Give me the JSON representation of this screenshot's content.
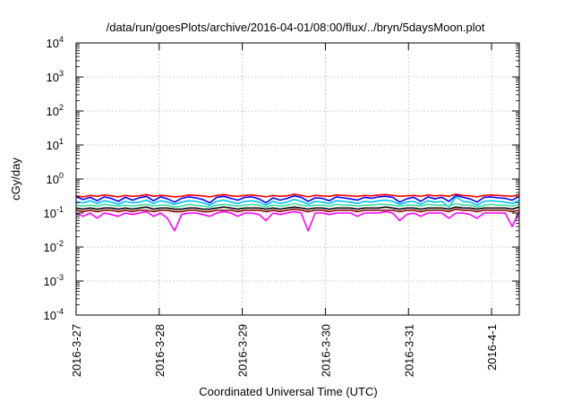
{
  "chart_data": {
    "type": "line",
    "title": "/data/run/goesPlots/archive/2016-04-01/08:00/flux/../bryn/5daysMoon.plot",
    "xlabel": "Coordinated Universal Time (UTC)",
    "ylabel": "cGy/day",
    "yscale": "log",
    "ylim": [
      0.0001,
      10000
    ],
    "y_ticks": [
      {
        "base": "10",
        "exp": "4"
      },
      {
        "base": "10",
        "exp": "3"
      },
      {
        "base": "10",
        "exp": "2"
      },
      {
        "base": "10",
        "exp": "1"
      },
      {
        "base": "10",
        "exp": "0"
      },
      {
        "base": "10",
        "exp": "-1"
      },
      {
        "base": "10",
        "exp": "-2"
      },
      {
        "base": "10",
        "exp": "-3"
      },
      {
        "base": "10",
        "exp": "-4"
      }
    ],
    "xlim": [
      "2016-03-27 00:00",
      "2016-04-01 08:00"
    ],
    "x_ticks": [
      "2016-3-27",
      "2016-3-28",
      "2016-3-29",
      "2016-3-30",
      "2016-3-31",
      "2016-4-1"
    ],
    "grid": true,
    "series": [
      {
        "color": "#ff0000",
        "values": [
          0.32,
          0.3,
          0.33,
          0.31,
          0.34,
          0.32,
          0.3,
          0.33,
          0.31,
          0.32,
          0.35,
          0.31,
          0.33,
          0.32,
          0.3,
          0.31,
          0.34,
          0.33,
          0.32,
          0.3,
          0.33,
          0.35,
          0.32,
          0.31,
          0.33,
          0.34,
          0.32,
          0.3,
          0.33,
          0.31,
          0.32,
          0.36,
          0.33,
          0.3,
          0.33,
          0.32,
          0.31,
          0.34,
          0.33,
          0.32,
          0.31,
          0.33,
          0.32,
          0.34,
          0.35,
          0.33,
          0.31,
          0.32,
          0.33,
          0.31,
          0.34,
          0.32,
          0.33,
          0.31,
          0.36,
          0.33,
          0.32,
          0.3,
          0.33,
          0.34,
          0.33,
          0.32,
          0.31,
          0.35
        ]
      },
      {
        "color": "#0000ff",
        "values": [
          0.3,
          0.25,
          0.29,
          0.23,
          0.3,
          0.27,
          0.22,
          0.29,
          0.24,
          0.28,
          0.31,
          0.23,
          0.3,
          0.26,
          0.21,
          0.27,
          0.3,
          0.28,
          0.25,
          0.2,
          0.29,
          0.31,
          0.27,
          0.24,
          0.29,
          0.3,
          0.26,
          0.2,
          0.28,
          0.24,
          0.27,
          0.32,
          0.29,
          0.22,
          0.28,
          0.27,
          0.23,
          0.3,
          0.28,
          0.26,
          0.24,
          0.29,
          0.27,
          0.3,
          0.31,
          0.29,
          0.21,
          0.26,
          0.29,
          0.22,
          0.3,
          0.26,
          0.29,
          0.22,
          0.33,
          0.29,
          0.26,
          0.21,
          0.29,
          0.3,
          0.28,
          0.27,
          0.24,
          0.31
        ]
      },
      {
        "color": "#00bfff",
        "values": [
          0.22,
          0.2,
          0.23,
          0.19,
          0.23,
          0.21,
          0.18,
          0.22,
          0.2,
          0.21,
          0.24,
          0.19,
          0.23,
          0.21,
          0.18,
          0.21,
          0.23,
          0.22,
          0.2,
          0.17,
          0.22,
          0.24,
          0.21,
          0.19,
          0.22,
          0.23,
          0.21,
          0.17,
          0.22,
          0.19,
          0.21,
          0.25,
          0.22,
          0.18,
          0.22,
          0.21,
          0.19,
          0.23,
          0.22,
          0.21,
          0.19,
          0.22,
          0.21,
          0.23,
          0.24,
          0.22,
          0.18,
          0.21,
          0.22,
          0.18,
          0.23,
          0.21,
          0.22,
          0.15,
          0.3,
          0.22,
          0.21,
          0.17,
          0.22,
          0.23,
          0.22,
          0.21,
          0.19,
          0.24
        ]
      },
      {
        "color": "#40e0a0",
        "values": [
          0.17,
          0.16,
          0.17,
          0.16,
          0.18,
          0.17,
          0.16,
          0.17,
          0.16,
          0.17,
          0.18,
          0.16,
          0.17,
          0.17,
          0.15,
          0.16,
          0.18,
          0.17,
          0.16,
          0.15,
          0.17,
          0.18,
          0.17,
          0.16,
          0.17,
          0.18,
          0.17,
          0.15,
          0.17,
          0.16,
          0.17,
          0.19,
          0.17,
          0.16,
          0.17,
          0.17,
          0.16,
          0.18,
          0.17,
          0.17,
          0.16,
          0.17,
          0.17,
          0.18,
          0.18,
          0.17,
          0.16,
          0.17,
          0.17,
          0.16,
          0.18,
          0.17,
          0.17,
          0.16,
          0.19,
          0.17,
          0.17,
          0.15,
          0.17,
          0.18,
          0.17,
          0.17,
          0.16,
          0.18
        ]
      },
      {
        "color": "#000000",
        "values": [
          0.14,
          0.13,
          0.14,
          0.13,
          0.14,
          0.14,
          0.13,
          0.14,
          0.13,
          0.14,
          0.15,
          0.13,
          0.14,
          0.14,
          0.13,
          0.13,
          0.14,
          0.14,
          0.13,
          0.13,
          0.14,
          0.15,
          0.14,
          0.13,
          0.14,
          0.14,
          0.14,
          0.13,
          0.14,
          0.13,
          0.14,
          0.15,
          0.14,
          0.13,
          0.14,
          0.14,
          0.13,
          0.14,
          0.14,
          0.14,
          0.13,
          0.14,
          0.14,
          0.14,
          0.15,
          0.14,
          0.13,
          0.14,
          0.14,
          0.13,
          0.14,
          0.14,
          0.14,
          0.13,
          0.15,
          0.14,
          0.14,
          0.13,
          0.14,
          0.14,
          0.14,
          0.14,
          0.13,
          0.15
        ]
      },
      {
        "color": "#8b0000",
        "values": [
          0.12,
          0.11,
          0.12,
          0.11,
          0.12,
          0.12,
          0.11,
          0.12,
          0.11,
          0.12,
          0.12,
          0.11,
          0.12,
          0.12,
          0.11,
          0.11,
          0.12,
          0.12,
          0.11,
          0.11,
          0.12,
          0.12,
          0.12,
          0.11,
          0.12,
          0.12,
          0.12,
          0.11,
          0.12,
          0.11,
          0.12,
          0.13,
          0.12,
          0.11,
          0.12,
          0.12,
          0.11,
          0.12,
          0.12,
          0.12,
          0.11,
          0.12,
          0.12,
          0.12,
          0.12,
          0.12,
          0.11,
          0.12,
          0.12,
          0.11,
          0.12,
          0.12,
          0.12,
          0.11,
          0.13,
          0.12,
          0.12,
          0.11,
          0.12,
          0.12,
          0.12,
          0.12,
          0.11,
          0.12
        ]
      },
      {
        "color": "#ff00ff",
        "values": [
          0.1,
          0.08,
          0.1,
          0.07,
          0.1,
          0.09,
          0.08,
          0.1,
          0.09,
          0.1,
          0.11,
          0.08,
          0.1,
          0.07,
          0.03,
          0.09,
          0.1,
          0.1,
          0.09,
          0.08,
          0.1,
          0.11,
          0.1,
          0.08,
          0.1,
          0.1,
          0.09,
          0.06,
          0.1,
          0.09,
          0.1,
          0.11,
          0.1,
          0.03,
          0.1,
          0.1,
          0.09,
          0.1,
          0.1,
          0.1,
          0.08,
          0.1,
          0.1,
          0.1,
          0.11,
          0.1,
          0.06,
          0.09,
          0.1,
          0.08,
          0.1,
          0.1,
          0.1,
          0.07,
          0.1,
          0.1,
          0.09,
          0.07,
          0.1,
          0.1,
          0.1,
          0.1,
          0.04,
          0.11
        ]
      }
    ]
  }
}
